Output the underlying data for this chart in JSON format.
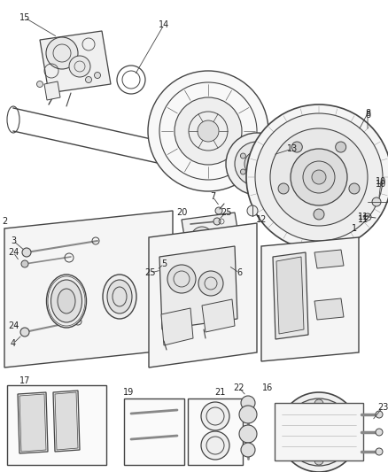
{
  "bg_color": "#ffffff",
  "fig_width": 4.38,
  "fig_height": 5.33,
  "dpi": 100,
  "line_color": "#444444",
  "text_color": "#222222",
  "font_size": 7.0,
  "label_font_size": 7.0
}
